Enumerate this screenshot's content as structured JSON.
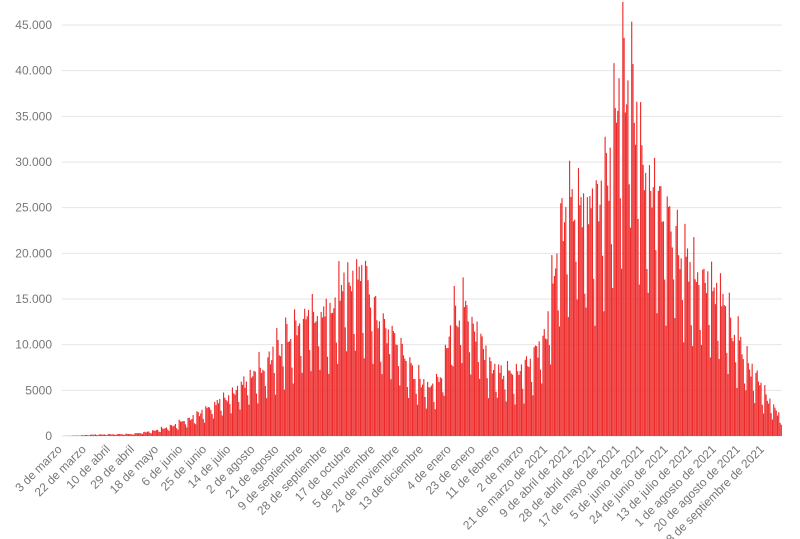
{
  "chart_data": {
    "type": "bar",
    "title": "",
    "xlabel": "",
    "ylabel": "",
    "ylim": [
      0,
      45000
    ],
    "y_ticks": [
      {
        "value": 0,
        "label": "0"
      },
      {
        "value": 5000,
        "label": "5000"
      },
      {
        "value": 10000,
        "label": "10.000"
      },
      {
        "value": 15000,
        "label": "15.000"
      },
      {
        "value": 20000,
        "label": "20.000"
      },
      {
        "value": 25000,
        "label": "25.000"
      },
      {
        "value": 30000,
        "label": "30.000"
      },
      {
        "value": 35000,
        "label": "35.000"
      },
      {
        "value": 40000,
        "label": "40.000"
      },
      {
        "value": 45000,
        "label": "45.000"
      }
    ],
    "x_ticks": [
      {
        "label": "3 de marzo",
        "day": 0
      },
      {
        "label": "22 de marzo",
        "day": 19
      },
      {
        "label": "10 de abril",
        "day": 38
      },
      {
        "label": "29 de abril",
        "day": 57
      },
      {
        "label": "18 de mayo",
        "day": 76
      },
      {
        "label": "6 de junio",
        "day": 95
      },
      {
        "label": "25 de junio",
        "day": 114
      },
      {
        "label": "14 de julio",
        "day": 133
      },
      {
        "label": "2 de agosto",
        "day": 152
      },
      {
        "label": "21 de agosto",
        "day": 171
      },
      {
        "label": "9 de septiembre",
        "day": 190
      },
      {
        "label": "28 de septiembre",
        "day": 209
      },
      {
        "label": "17 de octubre",
        "day": 228
      },
      {
        "label": "5 de noviembre",
        "day": 247
      },
      {
        "label": "24 de noviembre",
        "day": 266
      },
      {
        "label": "13 de diciembre",
        "day": 285
      },
      {
        "label": "4 de enero",
        "day": 307
      },
      {
        "label": "23 de enero",
        "day": 326
      },
      {
        "label": "11 de febrero",
        "day": 345
      },
      {
        "label": "2 de marzo",
        "day": 364
      },
      {
        "label": "21 de marzo de 2021",
        "day": 383
      },
      {
        "label": "9 de abril de 2021",
        "day": 402
      },
      {
        "label": "28 de abril de 2021",
        "day": 421
      },
      {
        "label": "17 de mayo de 2021",
        "day": 440
      },
      {
        "label": "5 de junio de 2021",
        "day": 459
      },
      {
        "label": "24 de junio de 2021",
        "day": 478
      },
      {
        "label": "13 de julio de 2021",
        "day": 497
      },
      {
        "label": "1 de agosto de 2021",
        "day": 516
      },
      {
        "label": "20 de agosto de 2021",
        "day": 535
      },
      {
        "label": "8 de septiembre de 2021",
        "day": 554
      }
    ],
    "series": [
      {
        "color": "#ee2b2b",
        "anchors": [
          [
            0,
            0
          ],
          [
            12,
            50
          ],
          [
            25,
            150
          ],
          [
            40,
            180
          ],
          [
            55,
            220
          ],
          [
            70,
            500
          ],
          [
            85,
            1000
          ],
          [
            100,
            1800
          ],
          [
            115,
            2800
          ],
          [
            130,
            4200
          ],
          [
            145,
            6000
          ],
          [
            160,
            7500
          ],
          [
            175,
            10000
          ],
          [
            190,
            12000
          ],
          [
            205,
            12500
          ],
          [
            220,
            15000
          ],
          [
            235,
            17000
          ],
          [
            250,
            12500
          ],
          [
            265,
            10000
          ],
          [
            280,
            6000
          ],
          [
            290,
            5000
          ],
          [
            300,
            6500
          ],
          [
            308,
            12500
          ],
          [
            318,
            13500
          ],
          [
            328,
            10500
          ],
          [
            340,
            7000
          ],
          [
            355,
            6500
          ],
          [
            370,
            7500
          ],
          [
            382,
            11000
          ],
          [
            390,
            20000
          ],
          [
            402,
            25000
          ],
          [
            415,
            23000
          ],
          [
            430,
            26000
          ],
          [
            440,
            36000
          ],
          [
            448,
            38000
          ],
          [
            460,
            28000
          ],
          [
            480,
            22000
          ],
          [
            500,
            17000
          ],
          [
            520,
            14000
          ],
          [
            540,
            8000
          ],
          [
            560,
            3000
          ],
          [
            567,
            2000
          ]
        ]
      }
    ]
  }
}
